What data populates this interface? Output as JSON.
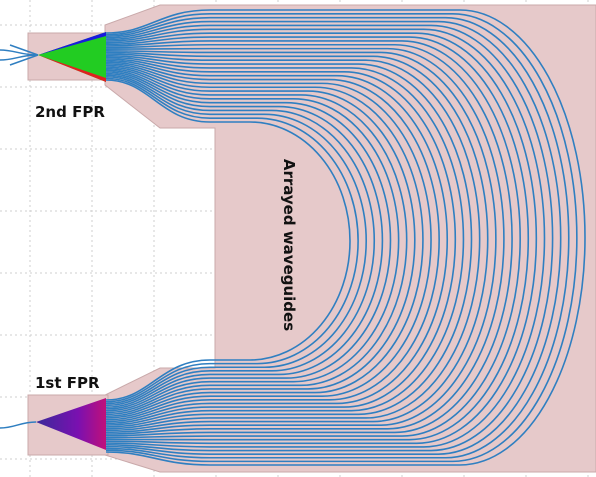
{
  "labels": {
    "second_fpr": "2nd FPR",
    "arrayed_waveguides": "Arrayed waveguides",
    "first_fpr": "1st FPR"
  }
}
